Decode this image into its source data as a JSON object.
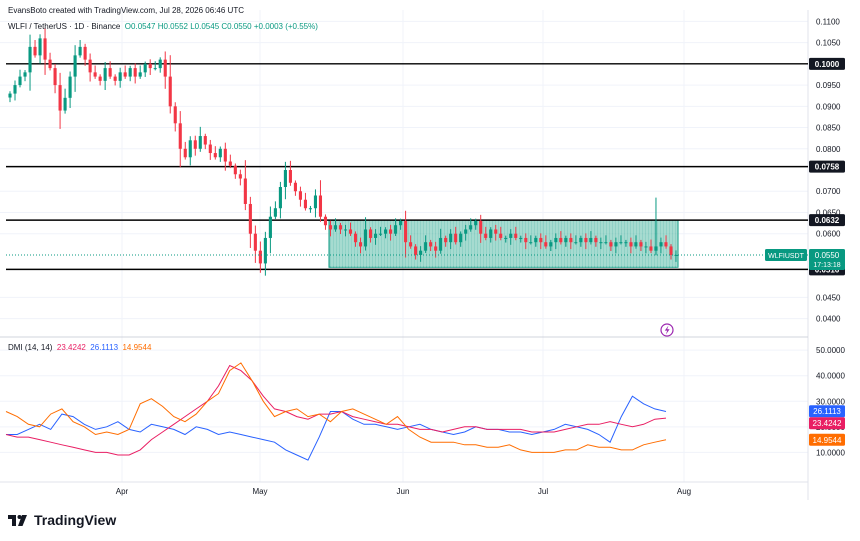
{
  "header": {
    "created_by": "EvansBoto created with TradingView.com, Jul 28, 2026 06:46 UTC"
  },
  "legend": {
    "symbol": "WLFI / TetherUS · 1D · Binance",
    "open": "O0.0547",
    "high": "H0.0552",
    "low": "L0.0545",
    "close": "C0.0550",
    "change": "+0.0003 (+0.55%)"
  },
  "dmi_legend": {
    "name": "DMI (14, 14)",
    "v1": "23.4242",
    "v2": "26.1113",
    "v3": "14.9544"
  },
  "brand": {
    "name": "TradingView"
  },
  "colors": {
    "up": "#089981",
    "down": "#f23645",
    "range_box": "#089981",
    "plus_di": "#2962ff",
    "minus_di": "#e91e63",
    "adx": "#ff6d00",
    "hline": "#000000"
  },
  "chart_data": [
    {
      "type": "candlestick",
      "title": "",
      "y_axis_ticks": [
        "0.1100",
        "0.1050",
        "0.1000",
        "0.0950",
        "0.0900",
        "0.0850",
        "0.0800",
        "0.0758",
        "0.0700",
        "0.0650",
        "0.0632",
        "0.0600",
        "0.0550",
        "0.0516",
        "0.0450",
        "0.0400"
      ],
      "ylim": [
        0.0385,
        0.1108
      ],
      "x_axis_ticks": [
        "Apr",
        "May",
        "Jun",
        "Jul",
        "Aug"
      ],
      "horizontal_levels": [
        {
          "label": "0.1000",
          "value": 0.1
        },
        {
          "label": "0.0758",
          "value": 0.0758
        },
        {
          "label": "0.0632",
          "value": 0.0632
        },
        {
          "label": "0.0516",
          "value": 0.0516
        }
      ],
      "range_box": {
        "from": "May 17",
        "to": "Jul 27",
        "top": 0.0632,
        "bottom": 0.0521
      },
      "price_label": {
        "symbol": "WLFIUSDT",
        "price": "0.0550",
        "countdown": "17:13:18"
      },
      "close_series": [
        0.093,
        0.095,
        0.097,
        0.098,
        0.104,
        0.102,
        0.106,
        0.101,
        0.099,
        0.095,
        0.089,
        0.092,
        0.097,
        0.102,
        0.104,
        0.101,
        0.098,
        0.097,
        0.096,
        0.099,
        0.097,
        0.096,
        0.098,
        0.097,
        0.099,
        0.097,
        0.098,
        0.1,
        0.099,
        0.099,
        0.101,
        0.097,
        0.09,
        0.086,
        0.08,
        0.078,
        0.082,
        0.08,
        0.083,
        0.081,
        0.079,
        0.078,
        0.08,
        0.077,
        0.076,
        0.074,
        0.073,
        0.067,
        0.06,
        0.056,
        0.053,
        0.059,
        0.064,
        0.066,
        0.071,
        0.075,
        0.072,
        0.07,
        0.068,
        0.066,
        0.066,
        0.069,
        0.064,
        0.062,
        0.061,
        0.062,
        0.061,
        0.061,
        0.06,
        0.058,
        0.057,
        0.061,
        0.059,
        0.06,
        0.06,
        0.061,
        0.06,
        0.062,
        0.063,
        0.058,
        0.057,
        0.055,
        0.056,
        0.058,
        0.057,
        0.056,
        0.059,
        0.058,
        0.06,
        0.058,
        0.06,
        0.061,
        0.062,
        0.063,
        0.06,
        0.059,
        0.061,
        0.06,
        0.059,
        0.059,
        0.06,
        0.059,
        0.059,
        0.058,
        0.058,
        0.059,
        0.058,
        0.057,
        0.058,
        0.059,
        0.058,
        0.059,
        0.058,
        0.058,
        0.059,
        0.058,
        0.059,
        0.058,
        0.058,
        0.058,
        0.057,
        0.058,
        0.058,
        0.058,
        0.057,
        0.058,
        0.057,
        0.057,
        0.056,
        0.057,
        0.058,
        0.057,
        0.055,
        0.055
      ]
    },
    {
      "type": "line",
      "title": "",
      "y_axis_ticks": [
        "50.0000",
        "40.0000",
        "30.0000",
        "20.0000",
        "10.0000"
      ],
      "ylim": [
        0,
        52
      ],
      "value_badges": [
        "26.1113",
        "23.4242",
        "14.9544"
      ],
      "series": [
        {
          "name": "",
          "color": "#2962ff",
          "values": [
            17,
            17,
            19,
            21,
            19,
            25,
            24,
            21,
            19,
            20,
            22,
            19,
            18,
            21,
            20,
            19,
            17,
            20,
            19,
            17,
            18,
            17,
            16,
            15,
            14,
            11,
            9,
            7,
            16,
            26,
            26,
            23,
            21,
            21,
            20,
            19,
            20,
            21,
            19,
            18,
            17,
            18,
            20,
            19,
            19,
            18,
            18,
            17,
            18,
            19,
            21,
            20,
            19,
            17,
            14,
            24,
            32,
            29,
            27,
            26
          ]
        },
        {
          "name": "",
          "color": "#e91e63",
          "values": [
            17,
            16,
            16,
            15,
            14,
            13,
            12,
            11,
            10,
            10,
            9,
            9,
            11,
            15,
            18,
            21,
            24,
            27,
            30,
            36,
            44,
            42,
            38,
            32,
            27,
            26,
            24,
            23,
            25,
            25,
            26,
            24,
            23,
            22,
            21,
            21,
            20,
            19,
            19,
            18,
            19,
            20,
            20,
            19,
            19,
            19,
            19,
            18,
            18,
            18,
            19,
            20,
            21,
            21,
            22,
            21,
            20,
            21,
            23,
            23.4
          ]
        },
        {
          "name": "",
          "color": "#ff6d00",
          "values": [
            26,
            24,
            21,
            20,
            25,
            27,
            22,
            20,
            17,
            18,
            17,
            19,
            29,
            31,
            28,
            24,
            22,
            25,
            30,
            33,
            42,
            45,
            38,
            30,
            24,
            26,
            27,
            24,
            25,
            22,
            26,
            27,
            25,
            23,
            21,
            24,
            19,
            16,
            14,
            14,
            14,
            13,
            13,
            12,
            12,
            13,
            11,
            10,
            10,
            10,
            11,
            11,
            13,
            12,
            12,
            11,
            11,
            13,
            14,
            14.95
          ]
        }
      ]
    }
  ]
}
